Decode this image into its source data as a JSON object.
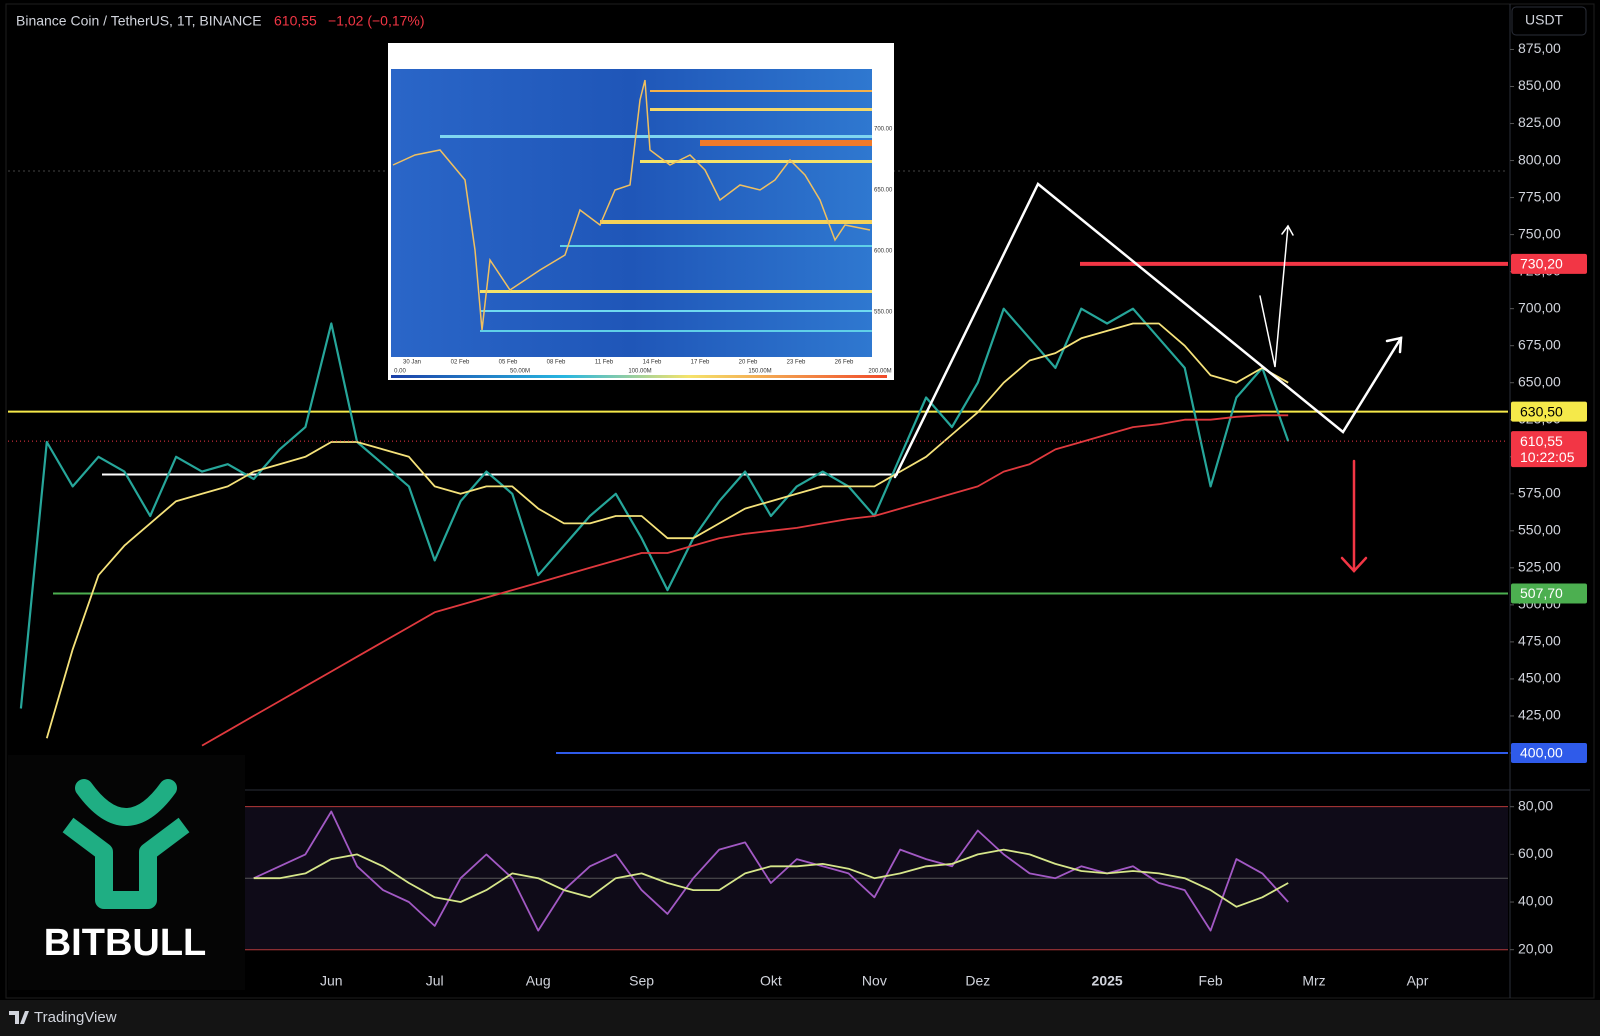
{
  "header": {
    "symbol": "Binance Coin / TetherUS, 1T, BINANCE",
    "price": "610,55",
    "change": "−1,02 (−0,17%)",
    "currency": "USDT"
  },
  "chart_data": [
    {
      "type": "line",
      "ylim": [
        375,
        903
      ],
      "yticks": [
        {
          "value": 400,
          "label": "400,00"
        },
        {
          "value": 425,
          "label": "425,00"
        },
        {
          "value": 450,
          "label": "450,00"
        },
        {
          "value": 475,
          "label": "475,00"
        },
        {
          "value": 500,
          "label": "500,00"
        },
        {
          "value": 525,
          "label": "525,00"
        },
        {
          "value": 550,
          "label": "550,00"
        },
        {
          "value": 575,
          "label": "575,00"
        },
        {
          "value": 600,
          "label": "600,00"
        },
        {
          "value": 625,
          "label": "625,00"
        },
        {
          "value": 650,
          "label": "650,00"
        },
        {
          "value": 675,
          "label": "675,00"
        },
        {
          "value": 700,
          "label": "700,00"
        },
        {
          "value": 725,
          "label": "725,00"
        },
        {
          "value": 750,
          "label": "750,00"
        },
        {
          "value": 775,
          "label": "775,00"
        },
        {
          "value": 800,
          "label": "800,00"
        },
        {
          "value": 825,
          "label": "825,00"
        },
        {
          "value": 850,
          "label": "850,00"
        },
        {
          "value": 875,
          "label": "875,00"
        }
      ],
      "series": [
        {
          "color": "#26a69a",
          "values": [
            430,
            610,
            580,
            600,
            590,
            560,
            600,
            590,
            595,
            585,
            605,
            620,
            690,
            610,
            595,
            580,
            530,
            570,
            590,
            575,
            520,
            540,
            560,
            575,
            545,
            510,
            545,
            570,
            590,
            560,
            580,
            590,
            580,
            560,
            600,
            640,
            620,
            650,
            700,
            680,
            660,
            700,
            690,
            700,
            680,
            660,
            580,
            640,
            660,
            610.55,
            null,
            null,
            null,
            null,
            null,
            null,
            null,
            null
          ]
        },
        {
          "color": "#f5e27a",
          "values": [
            null,
            410,
            470,
            520,
            540,
            555,
            570,
            575,
            580,
            590,
            595,
            600,
            610,
            610,
            605,
            600,
            580,
            575,
            580,
            580,
            565,
            555,
            555,
            560,
            560,
            545,
            545,
            555,
            565,
            570,
            575,
            580,
            580,
            580,
            590,
            600,
            615,
            630,
            650,
            665,
            670,
            680,
            685,
            690,
            690,
            675,
            655,
            650,
            660,
            650,
            null,
            null,
            null,
            null,
            null,
            null,
            null,
            null
          ]
        },
        {
          "color": "#e0393e",
          "values": [
            null,
            null,
            null,
            null,
            null,
            null,
            null,
            405,
            415,
            425,
            435,
            445,
            455,
            465,
            475,
            485,
            495,
            500,
            505,
            510,
            515,
            520,
            525,
            530,
            535,
            535,
            540,
            545,
            548,
            550,
            552,
            555,
            558,
            560,
            565,
            570,
            575,
            580,
            590,
            595,
            605,
            610,
            615,
            620,
            622,
            625,
            625,
            627,
            628,
            628,
            null,
            null,
            null,
            null,
            null,
            null,
            null,
            null
          ]
        }
      ],
      "levels": [
        {
          "value": 730.2,
          "label": "730,20",
          "color": "#f23645"
        },
        {
          "value": 630.5,
          "label": "630,50",
          "color": "#f5e94a"
        },
        {
          "value": 588,
          "color": "#ffffff"
        },
        {
          "value": 507.7,
          "label": "507,70",
          "color": "#4caf50"
        },
        {
          "value": 400,
          "label": "400,00",
          "color": "#2f5bea"
        }
      ],
      "last_price": {
        "value": 610.55,
        "label": "610,55",
        "countdown": "10:22:05",
        "color": "#f23645"
      }
    },
    {
      "type": "line",
      "categories": [
        null,
        null,
        null,
        null,
        null,
        null,
        null,
        null,
        null,
        null,
        null,
        null,
        "Jun",
        null,
        null,
        null,
        "Jul",
        null,
        null,
        null,
        "Aug",
        null,
        null,
        null,
        "Sep",
        null,
        null,
        null,
        null,
        "Okt",
        null,
        null,
        null,
        "Nov",
        null,
        null,
        null,
        "Dez",
        null,
        null,
        null,
        null,
        "2025",
        null,
        null,
        null,
        "Feb",
        null,
        null,
        null,
        "Mrz",
        null,
        null,
        null,
        "Apr",
        null,
        null,
        null
      ],
      "ylim": [
        14,
        87
      ],
      "yticks": [
        {
          "value": 20,
          "label": "20,00"
        },
        {
          "value": 40,
          "label": "40,00"
        },
        {
          "value": 60,
          "label": "60,00"
        },
        {
          "value": 80,
          "label": "80,00"
        }
      ],
      "bands": [
        20,
        80
      ],
      "midline": 50,
      "series": [
        {
          "color": "#a259c4",
          "values": [
            null,
            null,
            null,
            null,
            null,
            null,
            null,
            null,
            null,
            50,
            55,
            60,
            78,
            55,
            45,
            40,
            30,
            50,
            60,
            50,
            28,
            45,
            55,
            60,
            45,
            35,
            50,
            62,
            65,
            48,
            58,
            55,
            52,
            42,
            62,
            58,
            55,
            70,
            60,
            52,
            50,
            55,
            52,
            55,
            48,
            45,
            28,
            58,
            52,
            40,
            null,
            null,
            null,
            null,
            null,
            null,
            null,
            null
          ]
        },
        {
          "color": "#d6e68a",
          "values": [
            null,
            null,
            null,
            null,
            null,
            null,
            null,
            null,
            null,
            50,
            50,
            52,
            58,
            60,
            55,
            48,
            42,
            40,
            45,
            52,
            50,
            45,
            42,
            50,
            52,
            48,
            45,
            45,
            52,
            55,
            55,
            56,
            54,
            50,
            52,
            55,
            56,
            60,
            62,
            60,
            56,
            53,
            52,
            53,
            52,
            50,
            45,
            38,
            42,
            48,
            null,
            null,
            null,
            null,
            null,
            null,
            null,
            null
          ]
        }
      ]
    }
  ],
  "inset": {
    "x_labels": [
      "30 Jan",
      "02 Feb",
      "05 Feb",
      "08 Feb",
      "11 Feb",
      "14 Feb",
      "17 Feb",
      "20 Feb",
      "23 Feb",
      "26 Feb"
    ],
    "y_labels": [
      "700.00",
      "650.00",
      "600.00",
      "550.00"
    ],
    "scale_labels": [
      "0.00",
      "50.00M",
      "100.00M",
      "150.00M",
      "200.00M"
    ]
  },
  "logo": {
    "text": "BITBULL"
  },
  "footer": {
    "brand": "TradingView"
  }
}
